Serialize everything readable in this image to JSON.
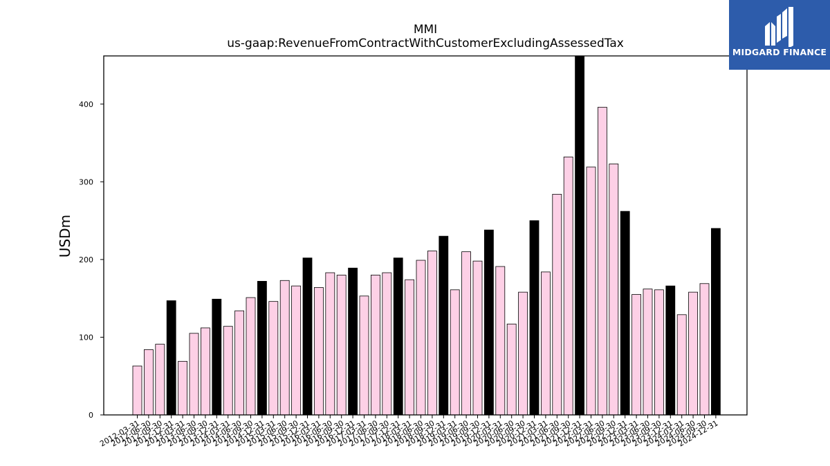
{
  "logo": {
    "text": "MIDGARD FINANCE",
    "background": "#2d5cab",
    "foreground": "#ffffff"
  },
  "chart_data": {
    "type": "bar",
    "title": "MMI",
    "subtitle": "us-gaap:RevenueFromContractWithCustomerExcludingAssessedTax",
    "xlabel": "",
    "ylabel": "USDm",
    "ylim": [
      0,
      462
    ],
    "yticks": [
      0,
      100,
      200,
      300,
      400
    ],
    "grid": false,
    "colors": {
      "quarter": "#fdd0e6",
      "annual": "#000000",
      "edge": "#000000"
    },
    "categories": [
      "2012-03-31",
      "2012-06-30",
      "2012-09-30",
      "2012-12-31",
      "2013-03-31",
      "2013-06-30",
      "2013-09-30",
      "2013-12-31",
      "2014-03-31",
      "2014-06-30",
      "2014-09-30",
      "2014-12-31",
      "2015-03-31",
      "2015-06-30",
      "2015-09-30",
      "2015-12-31",
      "2016-03-31",
      "2016-06-30",
      "2016-09-30",
      "2016-12-31",
      "2017-03-31",
      "2017-06-30",
      "2017-09-30",
      "2017-12-31",
      "2018-03-31",
      "2018-06-30",
      "2018-09-30",
      "2018-12-31",
      "2019-03-31",
      "2019-06-30",
      "2019-09-30",
      "2019-12-31",
      "2020-03-31",
      "2020-06-30",
      "2020-09-30",
      "2020-12-31",
      "2021-03-31",
      "2021-06-30",
      "2021-09-30",
      "2021-12-31",
      "2022-03-31",
      "2022-06-30",
      "2022-09-30",
      "2022-12-31",
      "2023-03-31",
      "2023-06-30",
      "2023-09-30",
      "2023-12-31",
      "2024-03-31",
      "2024-06-30",
      "2024-09-30",
      "2024-12-31"
    ],
    "values": [
      63,
      84,
      91,
      147,
      69,
      105,
      112,
      149,
      114,
      134,
      151,
      172,
      146,
      173,
      166,
      202,
      164,
      183,
      180,
      189,
      153,
      180,
      183,
      202,
      174,
      199,
      211,
      230,
      161,
      210,
      198,
      238,
      191,
      117,
      158,
      250,
      184,
      284,
      332,
      462,
      319,
      396,
      323,
      262,
      155,
      162,
      161,
      166,
      129,
      158,
      169,
      240
    ],
    "is_annual": [
      false,
      false,
      false,
      true,
      false,
      false,
      false,
      true,
      false,
      false,
      false,
      true,
      false,
      false,
      false,
      true,
      false,
      false,
      false,
      true,
      false,
      false,
      false,
      true,
      false,
      false,
      false,
      true,
      false,
      false,
      false,
      true,
      false,
      false,
      false,
      true,
      false,
      false,
      false,
      true,
      false,
      false,
      false,
      true,
      false,
      false,
      false,
      true,
      false,
      false,
      false,
      true
    ]
  }
}
